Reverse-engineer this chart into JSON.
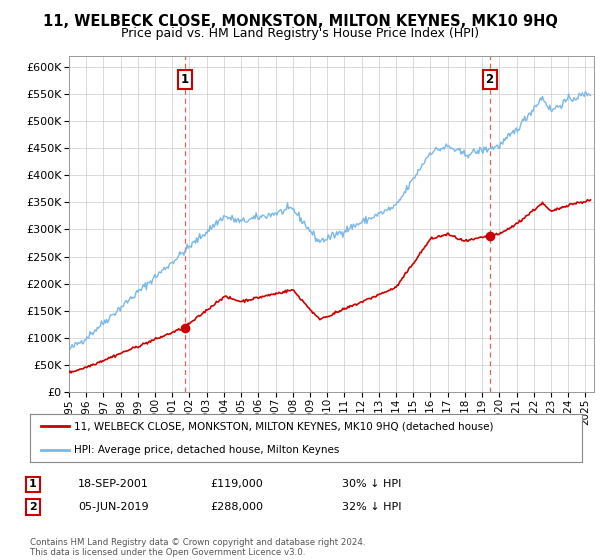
{
  "title": "11, WELBECK CLOSE, MONKSTON, MILTON KEYNES, MK10 9HQ",
  "subtitle": "Price paid vs. HM Land Registry's House Price Index (HPI)",
  "ylim": [
    0,
    620000
  ],
  "yticks": [
    0,
    50000,
    100000,
    150000,
    200000,
    250000,
    300000,
    350000,
    400000,
    450000,
    500000,
    550000,
    600000
  ],
  "xlim_start": 1995.0,
  "xlim_end": 2025.5,
  "sale1_year": 2001.72,
  "sale1_price": 119000,
  "sale1_label": "1",
  "sale2_year": 2019.43,
  "sale2_price": 288000,
  "sale2_label": "2",
  "hpi_color": "#7ab8e8",
  "sold_color": "#cc0000",
  "marker_color": "#cc0000",
  "vline_color": "#e06060",
  "background_color": "#ffffff",
  "grid_color": "#cccccc",
  "legend_label_sold": "11, WELBECK CLOSE, MONKSTON, MILTON KEYNES, MK10 9HQ (detached house)",
  "legend_label_hpi": "HPI: Average price, detached house, Milton Keynes",
  "footer": "Contains HM Land Registry data © Crown copyright and database right 2024.\nThis data is licensed under the Open Government Licence v3.0.",
  "title_fontsize": 10.5,
  "subtitle_fontsize": 9,
  "note1_date": "18-SEP-2001",
  "note1_price": "£119,000",
  "note1_hpi": "30% ↓ HPI",
  "note2_date": "05-JUN-2019",
  "note2_price": "£288,000",
  "note2_hpi": "32% ↓ HPI"
}
